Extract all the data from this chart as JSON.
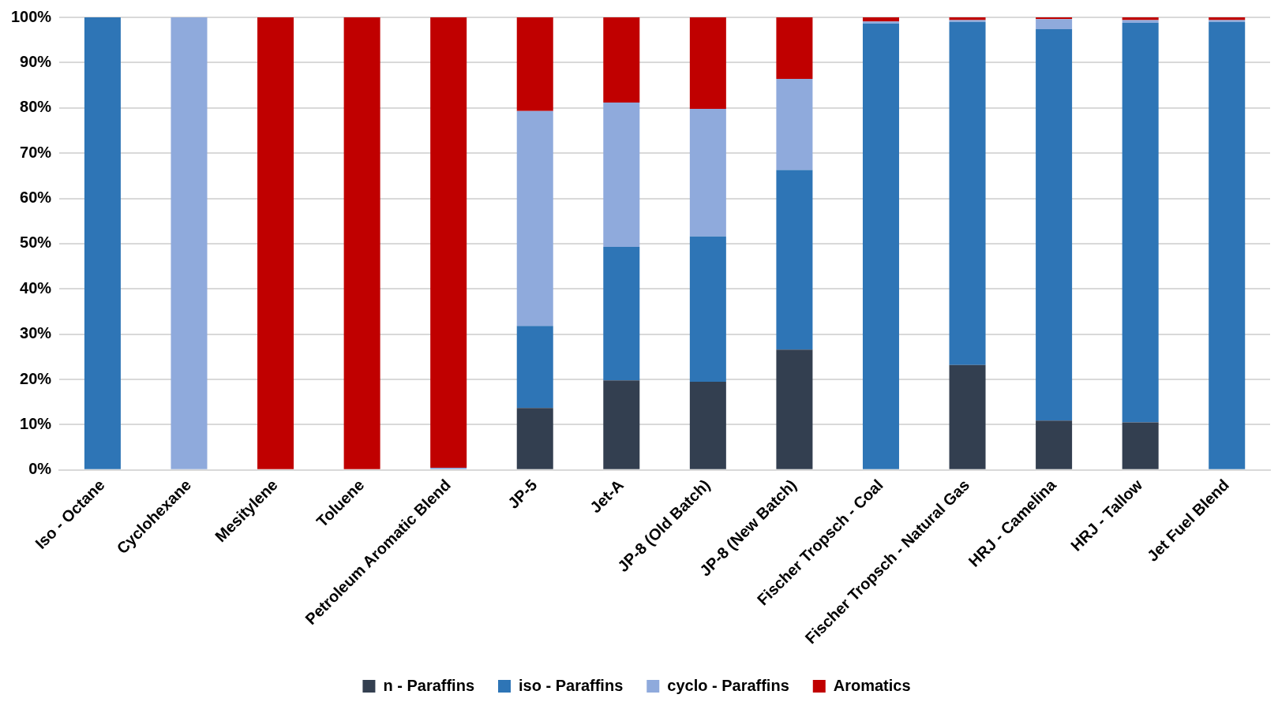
{
  "chart_data": {
    "type": "bar",
    "stacked": true,
    "categories": [
      "Iso - Octane",
      "Cyclohexane",
      "Mesitylene",
      "Toluene",
      "Petroleum Aromatic Blend",
      "JP-5",
      "Jet-A",
      "JP-8 (Old Batch)",
      "JP-8 (New Batch)",
      "Fischer Tropsch - Coal",
      "Fischer Tropsch - Natural Gas",
      "HRJ - Camelina",
      "HRJ - Tallow",
      "Jet Fuel Blend"
    ],
    "series": [
      {
        "name": "n - Paraffins",
        "color": "#333f50",
        "values": [
          0,
          0,
          0,
          0,
          0,
          13.7,
          19.8,
          19.5,
          26.6,
          0,
          23.2,
          10.9,
          10.5,
          0
        ]
      },
      {
        "name": "iso - Paraffins",
        "color": "#2e75b6",
        "values": [
          100,
          0,
          0,
          0,
          0,
          18.1,
          29.5,
          32.1,
          39.7,
          98.6,
          75.8,
          86.5,
          88.3,
          99.0
        ]
      },
      {
        "name": "cyclo - Paraffins",
        "color": "#8faadc",
        "values": [
          0,
          100,
          0,
          0,
          0.5,
          47.5,
          31.9,
          28.2,
          20.1,
          0.5,
          0.4,
          2.2,
          0.6,
          0.4
        ]
      },
      {
        "name": "Aromatics",
        "color": "#c00000",
        "values": [
          0,
          0,
          100,
          100,
          99.5,
          20.7,
          18.8,
          20.2,
          13.6,
          0.9,
          0.6,
          0.4,
          0.6,
          0.6
        ]
      }
    ],
    "ylim": [
      0,
      100
    ],
    "yticks": [
      {
        "value": 0,
        "label": "0%"
      },
      {
        "value": 10,
        "label": "10%"
      },
      {
        "value": 20,
        "label": "20%"
      },
      {
        "value": 30,
        "label": "30%"
      },
      {
        "value": 40,
        "label": "40%"
      },
      {
        "value": 50,
        "label": "50%"
      },
      {
        "value": 60,
        "label": "60%"
      },
      {
        "value": 70,
        "label": "70%"
      },
      {
        "value": 80,
        "label": "80%"
      },
      {
        "value": 90,
        "label": "90%"
      },
      {
        "value": 100,
        "label": "100%"
      }
    ],
    "grid": "y",
    "legend": "bottom"
  }
}
